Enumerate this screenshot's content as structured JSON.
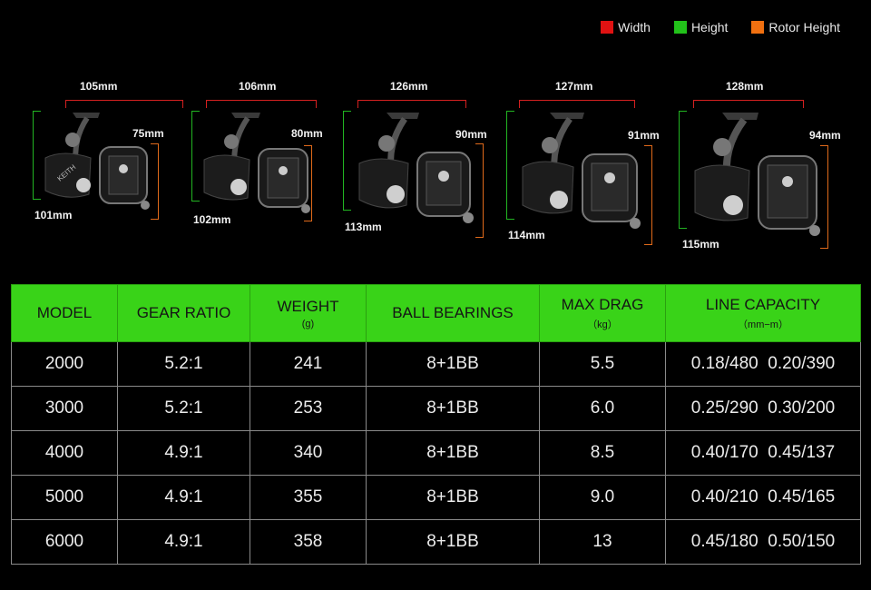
{
  "legend": [
    {
      "label": "Width",
      "color": "#e01212"
    },
    {
      "label": "Height",
      "color": "#22c21a"
    },
    {
      "label": "Rotor Height",
      "color": "#f07010"
    }
  ],
  "reels": [
    {
      "width": "105mm",
      "height": "101mm",
      "rotor": "75mm"
    },
    {
      "width": "106mm",
      "height": "102mm",
      "rotor": "80mm"
    },
    {
      "width": "126mm",
      "height": "113mm",
      "rotor": "90mm"
    },
    {
      "width": "127mm",
      "height": "114mm",
      "rotor": "91mm"
    },
    {
      "width": "128mm",
      "height": "115mm",
      "rotor": "94mm"
    }
  ],
  "table": {
    "headers": [
      {
        "label": "MODEL",
        "unit": ""
      },
      {
        "label": "GEAR RATIO",
        "unit": ""
      },
      {
        "label": "WEIGHT",
        "unit": "(g)"
      },
      {
        "label": "BALL BEARINGS",
        "unit": ""
      },
      {
        "label": "MAX DRAG",
        "unit": "（kg）"
      },
      {
        "label": "LINE CAPACITY",
        "unit": "（mm−m）"
      }
    ],
    "rows": [
      [
        "2000",
        "5.2:1",
        "241",
        "8+1BB",
        "5.5",
        "0.18/480  0.20/390"
      ],
      [
        "3000",
        "5.2:1",
        "253",
        "8+1BB",
        "6.0",
        "0.25/290  0.30/200"
      ],
      [
        "4000",
        "4.9:1",
        "340",
        "8+1BB",
        "8.5",
        "0.40/170  0.45/137"
      ],
      [
        "5000",
        "4.9:1",
        "355",
        "8+1BB",
        "9.0",
        "0.40/210  0.45/165"
      ],
      [
        "6000",
        "4.9:1",
        "358",
        "8+1BB",
        "13",
        "0.45/180  0.50/150"
      ]
    ]
  }
}
